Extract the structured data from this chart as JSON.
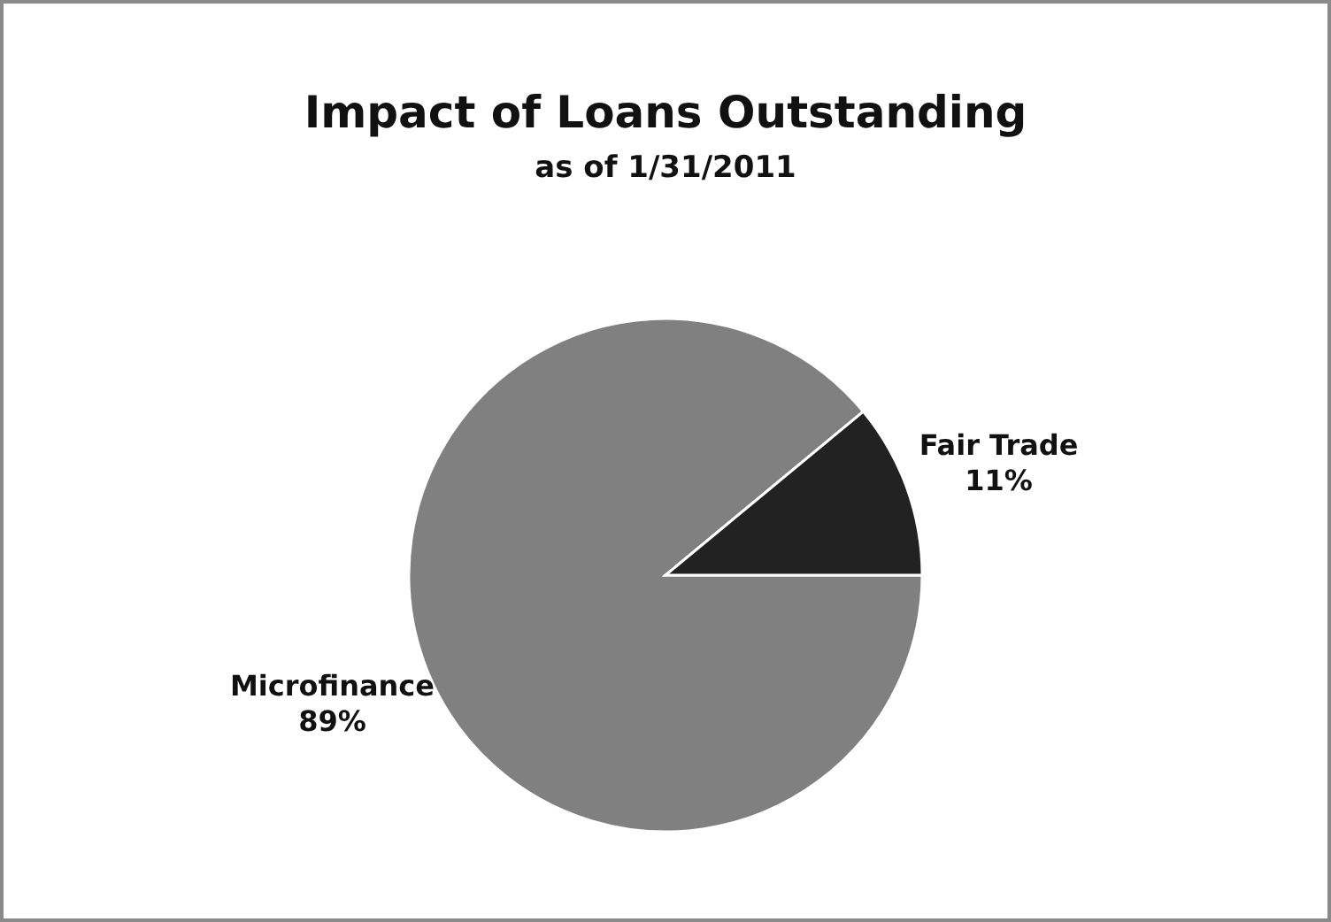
{
  "chart_data": {
    "type": "pie",
    "title": "Impact of Loans Outstanding",
    "subtitle": "as of 1/31/2011",
    "categories": [
      "Microfinance",
      "Fair Trade"
    ],
    "values": [
      89,
      11
    ],
    "value_labels": [
      "89%",
      "11%"
    ],
    "colors": [
      "#808080",
      "#222222"
    ]
  }
}
